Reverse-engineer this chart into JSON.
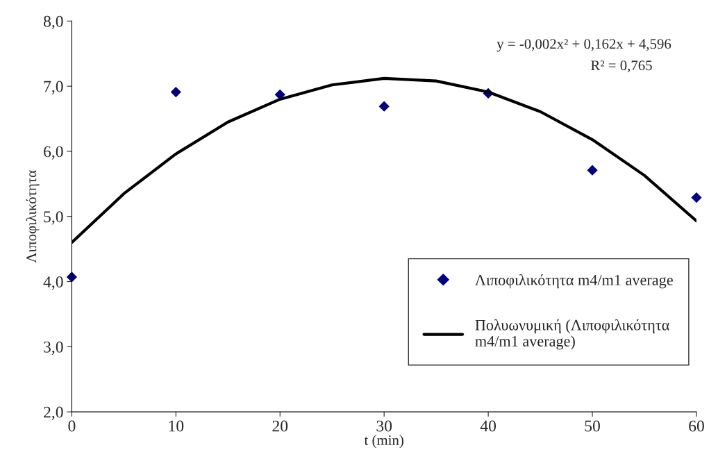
{
  "chart_data": {
    "type": "scatter",
    "xlabel": "t (min)",
    "ylabel": "Λιποφιλικότητα",
    "x": [
      0,
      10,
      20,
      30,
      40,
      50,
      60
    ],
    "series": [
      {
        "name": "Λιποφιλικότητα m4/m1 average",
        "color": "#000080",
        "marker": "diamond",
        "values": [
          4.07,
          6.91,
          6.87,
          6.69,
          6.89,
          5.71,
          5.29
        ]
      },
      {
        "name": "Πολυωνυμική (Λιποφιλικότητα m4/m1 average)",
        "type": "line",
        "color": "#000000",
        "marker": "none",
        "line_style": "solid",
        "x": [
          0,
          5,
          10,
          15,
          20,
          25,
          30,
          35,
          40,
          45,
          50,
          55,
          60
        ],
        "values": [
          4.6,
          5.35,
          5.96,
          6.45,
          6.8,
          7.02,
          7.12,
          7.08,
          6.91,
          6.61,
          6.18,
          5.63,
          4.93
        ]
      }
    ],
    "annotations": [
      "y = -0,002x² + 0,162x + 4,596",
      "R² = 0,765"
    ],
    "xlim": [
      0,
      60
    ],
    "xticks": [
      0,
      10,
      20,
      30,
      40,
      50,
      60
    ],
    "ylim": [
      2,
      8
    ],
    "yticks": [
      {
        "value": 2,
        "label": "2,0"
      },
      {
        "value": 3,
        "label": "3,0"
      },
      {
        "value": 4,
        "label": "4,0"
      },
      {
        "value": 5,
        "label": "5,0"
      },
      {
        "value": 6,
        "label": "6,0"
      },
      {
        "value": 7,
        "label": "7,0"
      },
      {
        "value": 8,
        "label": "8,0"
      }
    ],
    "grid": false,
    "legend": "bottom right"
  }
}
